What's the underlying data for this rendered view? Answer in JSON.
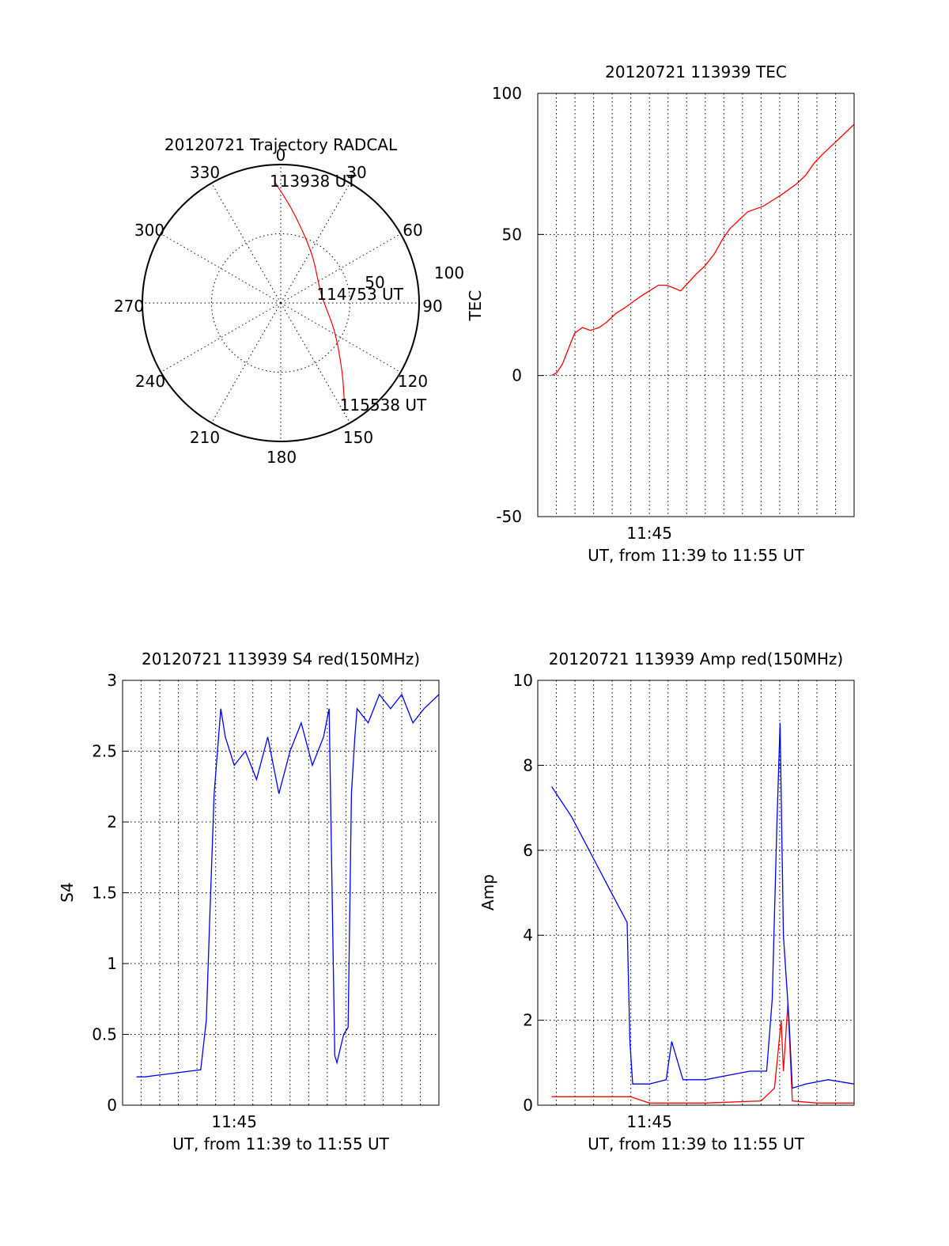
{
  "chart_data": [
    {
      "id": "polar",
      "type": "scatter",
      "title": "20120721 Trajectory RADCAL",
      "azimuth_labels": [
        "0",
        "30",
        "60",
        "90",
        "120",
        "150",
        "180",
        "210",
        "240",
        "270",
        "300",
        "330"
      ],
      "radius_labels": [
        "50",
        "100"
      ],
      "rlim": [
        0,
        100
      ],
      "grid": true,
      "series": [
        {
          "color": "#ff0000",
          "points": [
            {
              "az": 357,
              "r": 88
            },
            {
              "az": 8,
              "r": 66
            },
            {
              "az": 32,
              "r": 42
            },
            {
              "az": 78,
              "r": 30
            },
            {
              "az": 118,
              "r": 44
            },
            {
              "az": 138,
              "r": 66
            },
            {
              "az": 148,
              "r": 87
            }
          ]
        }
      ],
      "annotations": [
        {
          "text": "113938 UT",
          "az": 357,
          "r": 88
        },
        {
          "text": "114753 UT",
          "az": 78,
          "r": 30
        },
        {
          "text": "115538 UT",
          "az": 148,
          "r": 87
        }
      ]
    },
    {
      "id": "tec",
      "type": "line",
      "title": "20120721 113939 TEC",
      "xlabel": "UT, from 11:39 to 11:55 UT",
      "ylabel": "TEC",
      "xlim": [
        11.65,
        11.9333
      ],
      "ylim": [
        -50,
        100
      ],
      "yticks": [
        "-50",
        "0",
        "50",
        "100"
      ],
      "xticks": [
        {
          "v": 11.75,
          "label": "11:45"
        }
      ],
      "grid": true,
      "series": [
        {
          "color": "#ff0000",
          "x": [
            11.6625,
            11.667,
            11.672,
            11.678,
            11.683,
            11.69,
            11.697,
            11.705,
            11.712,
            11.72,
            11.728,
            11.735,
            11.742,
            11.75,
            11.758,
            11.765,
            11.772,
            11.778,
            11.785,
            11.792,
            11.8,
            11.808,
            11.815,
            11.822,
            11.83,
            11.838,
            11.845,
            11.852,
            11.86,
            11.868,
            11.875,
            11.882,
            11.89,
            11.897,
            11.904,
            11.912,
            11.92,
            11.928,
            11.9333
          ],
          "y": [
            0,
            1,
            4,
            10,
            15,
            17,
            16,
            17,
            19,
            22,
            24,
            26,
            28,
            30,
            32,
            32,
            31,
            30,
            33,
            36,
            39,
            43,
            48,
            52,
            55,
            58,
            59,
            60,
            62,
            64,
            66,
            68,
            71,
            75,
            78,
            81,
            84,
            87,
            89
          ]
        }
      ]
    },
    {
      "id": "s4",
      "type": "line",
      "title": "20120721 113939 S4 red(150MHz)",
      "xlabel": "UT, from 11:39 to 11:55 UT",
      "ylabel": "S4",
      "xlim": [
        11.65,
        11.9333
      ],
      "ylim": [
        0,
        3
      ],
      "yticks": [
        "0",
        "0.5",
        "1",
        "1.5",
        "2",
        "2.5",
        "3"
      ],
      "xticks": [
        {
          "v": 11.75,
          "label": "11:45"
        }
      ],
      "grid": true,
      "series": [
        {
          "color": "#0000ff",
          "x": [
            11.6625,
            11.67,
            11.68,
            11.69,
            11.7,
            11.71,
            11.72,
            11.725,
            11.728,
            11.732,
            11.738,
            11.742,
            11.75,
            11.76,
            11.77,
            11.78,
            11.79,
            11.8,
            11.81,
            11.82,
            11.83,
            11.835,
            11.84,
            11.842,
            11.845,
            11.848,
            11.852,
            11.855,
            11.858,
            11.86,
            11.87,
            11.88,
            11.89,
            11.9,
            11.91,
            11.92,
            11.9333
          ],
          "y": [
            0.2,
            0.2,
            0.21,
            0.22,
            0.23,
            0.24,
            0.25,
            0.6,
            1.3,
            2.2,
            2.8,
            2.6,
            2.4,
            2.5,
            2.3,
            2.6,
            2.2,
            2.5,
            2.7,
            2.4,
            2.6,
            2.8,
            0.35,
            0.3,
            0.4,
            0.5,
            0.55,
            2.2,
            2.6,
            2.8,
            2.7,
            2.9,
            2.8,
            2.9,
            2.7,
            2.8,
            2.9
          ]
        }
      ]
    },
    {
      "id": "amp",
      "type": "line",
      "title": "20120721 113939 Amp red(150MHz)",
      "xlabel": "UT, from 11:39 to 11:55 UT",
      "ylabel": "Amp",
      "xlim": [
        11.65,
        11.9333
      ],
      "ylim": [
        0,
        10
      ],
      "yticks": [
        "0",
        "2",
        "4",
        "6",
        "8",
        "10"
      ],
      "xticks": [
        {
          "v": 11.75,
          "label": "11:45"
        }
      ],
      "grid": true,
      "series": [
        {
          "color": "#ff0000",
          "x": [
            11.6625,
            11.68,
            11.7,
            11.72,
            11.733,
            11.75,
            11.8,
            11.85,
            11.862,
            11.865,
            11.868,
            11.87,
            11.874,
            11.878,
            11.9,
            11.9333
          ],
          "y": [
            0.2,
            0.2,
            0.2,
            0.2,
            0.2,
            0.05,
            0.05,
            0.1,
            0.4,
            1.2,
            2.0,
            0.8,
            2.4,
            0.1,
            0.05,
            0.05
          ]
        },
        {
          "color": "#0000ff",
          "x": [
            11.6625,
            11.67,
            11.68,
            11.69,
            11.7,
            11.71,
            11.72,
            11.73,
            11.7325,
            11.735,
            11.75,
            11.765,
            11.77,
            11.78,
            11.8,
            11.82,
            11.84,
            11.855,
            11.86,
            11.864,
            11.867,
            11.87,
            11.875,
            11.878,
            11.89,
            11.91,
            11.9333
          ],
          "y": [
            7.5,
            7.2,
            6.8,
            6.3,
            5.8,
            5.3,
            4.8,
            4.3,
            1.5,
            0.5,
            0.5,
            0.6,
            1.5,
            0.6,
            0.6,
            0.7,
            0.8,
            0.8,
            2.5,
            6.5,
            9.0,
            4.0,
            2.0,
            0.4,
            0.5,
            0.6,
            0.5
          ]
        }
      ]
    }
  ]
}
